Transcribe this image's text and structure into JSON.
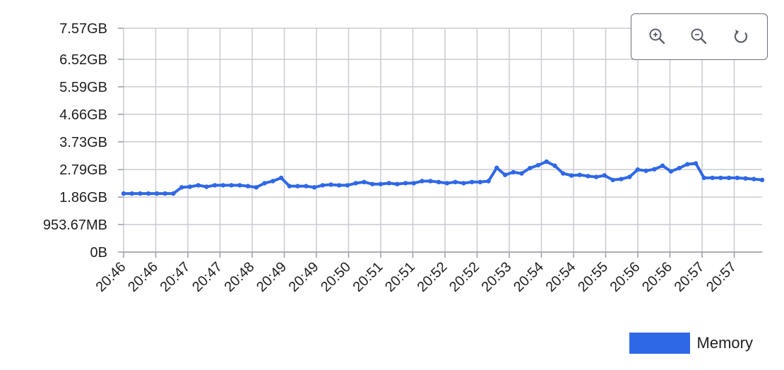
{
  "chart_data": {
    "type": "line",
    "y_ticks": [
      "0B",
      "953.67MB",
      "1.86GB",
      "2.79GB",
      "3.73GB",
      "4.66GB",
      "5.59GB",
      "6.52GB",
      "7.57GB"
    ],
    "y_tick_values": [
      0,
      0.9313,
      1.86,
      2.79,
      3.73,
      4.66,
      5.59,
      6.52,
      7.57
    ],
    "ylim": [
      0,
      7.57
    ],
    "x_ticks": [
      "20:46",
      "20:46",
      "20:47",
      "20:47",
      "20:48",
      "20:49",
      "20:49",
      "20:50",
      "20:51",
      "20:51",
      "20:52",
      "20:52",
      "20:53",
      "20:54",
      "20:54",
      "20:55",
      "20:56",
      "20:56",
      "20:57",
      "20:57"
    ],
    "grid": true,
    "legend_position": "bottom-right",
    "series": [
      {
        "name": "Memory",
        "color": "#2f68e6",
        "values": [
          1.98,
          1.98,
          1.98,
          1.98,
          1.98,
          1.98,
          1.98,
          2.19,
          2.21,
          2.26,
          2.21,
          2.26,
          2.26,
          2.26,
          2.26,
          2.23,
          2.19,
          2.33,
          2.4,
          2.51,
          2.23,
          2.23,
          2.23,
          2.19,
          2.26,
          2.28,
          2.26,
          2.26,
          2.33,
          2.37,
          2.3,
          2.3,
          2.33,
          2.3,
          2.33,
          2.33,
          2.4,
          2.4,
          2.37,
          2.33,
          2.37,
          2.33,
          2.37,
          2.37,
          2.4,
          2.85,
          2.61,
          2.7,
          2.66,
          2.84,
          2.94,
          3.06,
          2.92,
          2.66,
          2.59,
          2.61,
          2.57,
          2.54,
          2.59,
          2.44,
          2.47,
          2.54,
          2.79,
          2.75,
          2.8,
          2.92,
          2.73,
          2.84,
          2.97,
          3.0,
          2.51,
          2.51,
          2.51,
          2.51,
          2.51,
          2.49,
          2.47,
          2.44
        ]
      }
    ]
  },
  "legend": {
    "label": "Memory"
  },
  "toolbar": {
    "zoom_in_icon": "zoom-in-icon",
    "zoom_out_icon": "zoom-out-icon",
    "reset_icon": "reset-icon"
  }
}
